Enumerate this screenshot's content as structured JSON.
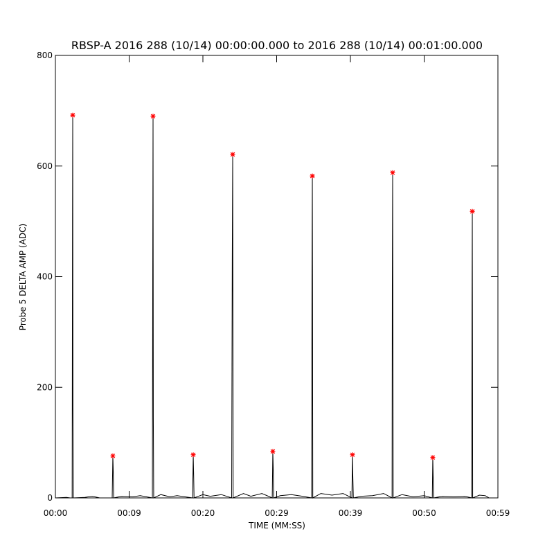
{
  "chart_data": {
    "type": "line",
    "title": "RBSP-A 2016 288 (10/14) 00:00:00.000 to 2016 288 (10/14) 00:01:00.000",
    "x_label": "TIME (MM:SS)",
    "y_label": "Probe 5 DELTA AMP (ADC)",
    "xlim": [
      0,
      60
    ],
    "ylim": [
      0,
      800
    ],
    "xticks": [
      {
        "value": 0,
        "label": "00:00"
      },
      {
        "value": 10,
        "label": "00:09"
      },
      {
        "value": 20,
        "label": "00:20"
      },
      {
        "value": 30,
        "label": "00:29"
      },
      {
        "value": 40,
        "label": "00:39"
      },
      {
        "value": 50,
        "label": "00:50"
      },
      {
        "value": 60,
        "label": "00:59"
      }
    ],
    "yticks": [
      0,
      200,
      400,
      600,
      800
    ],
    "series": [
      {
        "type": "line",
        "color": "#000000",
        "x": [
          0,
          1.5,
          2,
          2.27,
          2.32,
          2.35,
          2.38,
          2.43,
          4,
          5,
          6,
          7.7,
          7.79,
          7.85,
          7.9,
          9,
          10.5,
          11.5,
          13.15,
          13.2,
          13.24,
          13.28,
          13.33,
          14.3,
          15.5,
          16.5,
          18.6,
          18.69,
          18.75,
          18.8,
          20,
          21,
          22.5,
          23.9,
          23.98,
          24.04,
          24.1,
          25.5,
          26.5,
          28,
          29.4,
          29.48,
          29.55,
          29.6,
          30.5,
          32,
          33.5,
          34.75,
          34.79,
          34.84,
          34.9,
          36,
          37.5,
          39,
          40.2,
          40.28,
          40.33,
          40.4,
          41.5,
          43,
          44.5,
          45.65,
          45.68,
          45.73,
          45.8,
          47,
          48.5,
          50,
          51.1,
          51.17,
          51.22,
          51.3,
          52.5,
          54,
          55.5,
          56.45,
          56.49,
          56.53,
          56.58,
          57.5,
          58.3,
          58.8
        ],
        "values": [
          0,
          1,
          0,
          0,
          500,
          692,
          160,
          0,
          1,
          3,
          0,
          0,
          76,
          45,
          0,
          3,
          2,
          4,
          0,
          420,
          690,
          145,
          0,
          6,
          2,
          4,
          0,
          78,
          40,
          0,
          6,
          3,
          6,
          0,
          430,
          621,
          0,
          8,
          3,
          8,
          0,
          84,
          45,
          0,
          4,
          6,
          3,
          0,
          390,
          582,
          0,
          8,
          5,
          8,
          0,
          78,
          40,
          0,
          3,
          4,
          8,
          0,
          380,
          588,
          0,
          6,
          2,
          4,
          0,
          73,
          40,
          0,
          3,
          2,
          3,
          0,
          345,
          518,
          0,
          5,
          4,
          0
        ]
      },
      {
        "type": "scatter",
        "color": "#ff0000",
        "x": [
          2.35,
          7.79,
          13.24,
          18.69,
          24.04,
          29.48,
          34.84,
          40.28,
          45.73,
          51.17,
          56.53
        ],
        "values": [
          692,
          76,
          690,
          78,
          621,
          84,
          582,
          78,
          588,
          73,
          518
        ]
      }
    ]
  }
}
